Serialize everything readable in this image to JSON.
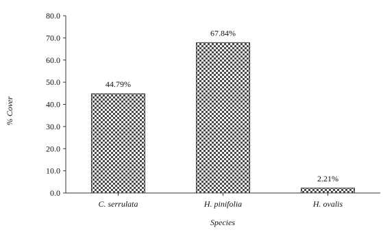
{
  "chart_data": {
    "type": "bar",
    "categories": [
      "C. serrulata",
      "H. pinifolia",
      "H. ovalis"
    ],
    "values": [
      44.79,
      67.84,
      2.21
    ],
    "data_labels": [
      "44.79%",
      "67.84%",
      "2.21%"
    ],
    "title": "",
    "xlabel": "Species",
    "ylabel": "% Cover",
    "ylim": [
      0,
      80
    ],
    "yticks": [
      0,
      10,
      20,
      30,
      40,
      50,
      60,
      70,
      80
    ],
    "ytick_labels": [
      "0.0",
      "10.0",
      "20.0",
      "30.0",
      "40.0",
      "50.0",
      "60.0",
      "70.0",
      "80.0"
    ],
    "grid": false,
    "legend": "none",
    "bar_color": "#555555",
    "bar_pattern": "checkered"
  }
}
